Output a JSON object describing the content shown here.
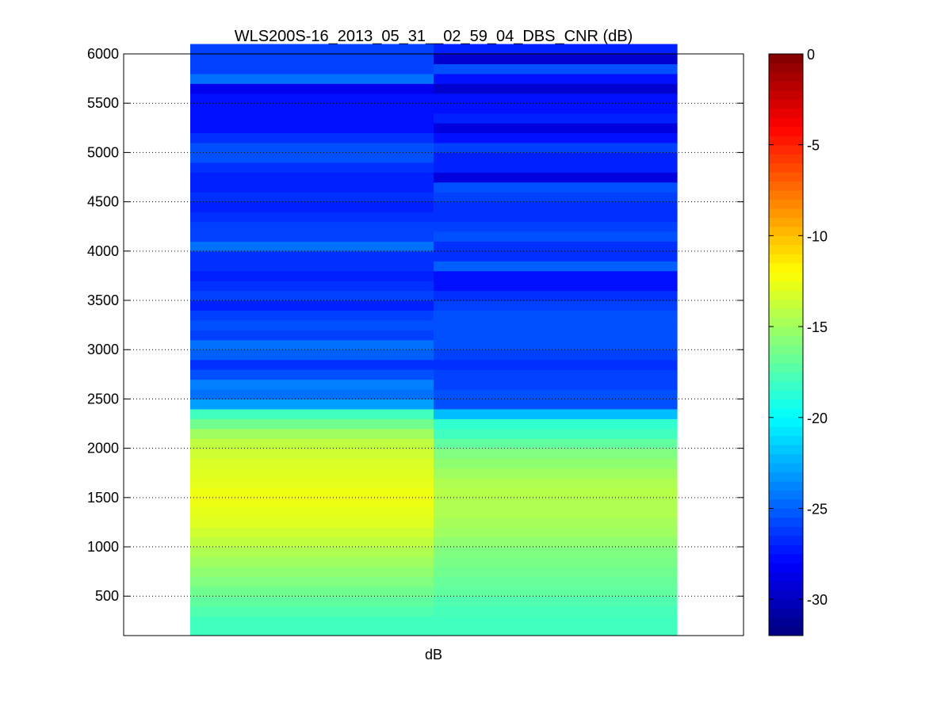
{
  "chart_data": {
    "type": "heatmap",
    "title": "WLS200S-16_2013_05_31__02_59_04_DBS_CNR (dB)",
    "xlabel": "dB",
    "ylabel": "",
    "ylim": [
      100,
      6000
    ],
    "yticks": [
      500,
      1000,
      1500,
      2000,
      2500,
      3000,
      3500,
      4000,
      4500,
      5000,
      5500,
      6000
    ],
    "grid": "horizontal dotted",
    "colormap": "jet",
    "clim": [
      -32,
      0
    ],
    "colorbar_ticks": [
      0,
      -5,
      -10,
      -15,
      -20,
      -25,
      -30
    ],
    "range_gate_spacing": 100,
    "series": [
      {
        "values": [
          -18.0,
          -18.0,
          -17.5,
          -17.0,
          -16.5,
          -16.0,
          -15.5,
          -15.0,
          -14.5,
          -14.0,
          -13.5,
          -13.0,
          -12.8,
          -12.6,
          -12.5,
          -12.8,
          -13.0,
          -13.2,
          -13.5,
          -14.0,
          -15.0,
          -16.5,
          -18.0,
          -23.0,
          -24.5,
          -24.0,
          -25.5,
          -26.5,
          -25.0,
          -24.5,
          -26.0,
          -25.5,
          -26.0,
          -27.0,
          -26.0,
          -26.5,
          -27.0,
          -26.5,
          -26.5,
          -24.5,
          -26.0,
          -26.0,
          -26.5,
          -27.0,
          -26.5,
          -27.0,
          -27.0,
          -26.5,
          -25.5,
          -25.5,
          -26.5,
          -27.5,
          -27.5,
          -27.5,
          -27.5,
          -28.5,
          -24.5,
          -26.0,
          -26.0,
          -26.0
        ]
      },
      {
        "values": [
          -18.0,
          -18.0,
          -17.8,
          -17.5,
          -17.0,
          -16.8,
          -16.5,
          -16.2,
          -16.0,
          -15.5,
          -15.0,
          -14.8,
          -14.5,
          -14.5,
          -14.3,
          -14.5,
          -15.0,
          -15.5,
          -16.0,
          -17.0,
          -18.0,
          -18.5,
          -22.0,
          -25.5,
          -25.5,
          -26.0,
          -26.0,
          -26.5,
          -26.0,
          -25.5,
          -25.5,
          -25.5,
          -25.5,
          -26.0,
          -26.5,
          -27.5,
          -27.5,
          -25.0,
          -26.5,
          -26.5,
          -25.5,
          -26.0,
          -26.5,
          -26.5,
          -26.0,
          -25.5,
          -29.0,
          -27.0,
          -27.0,
          -26.0,
          -27.5,
          -29.0,
          -27.0,
          -27.5,
          -27.5,
          -29.5,
          -27.5,
          -25.5,
          -29.5,
          -27.0
        ]
      }
    ]
  }
}
